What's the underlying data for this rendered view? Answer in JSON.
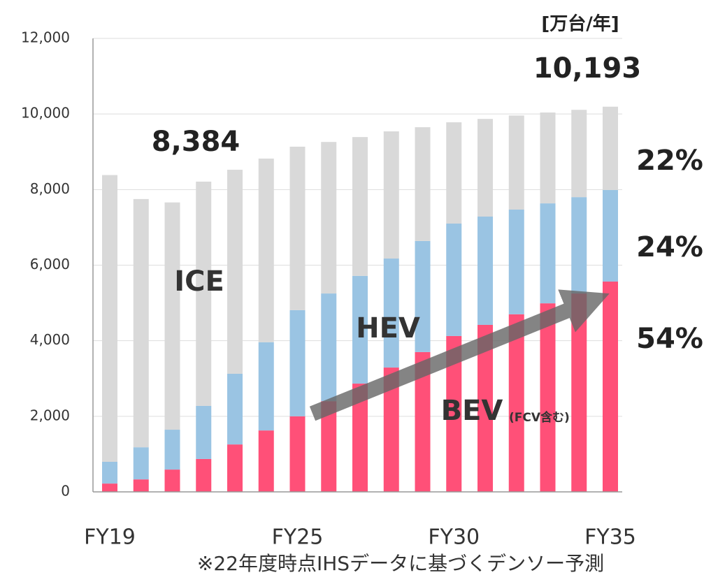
{
  "chart_data": {
    "type": "stacked_bar",
    "unit": "[万台/年]",
    "categories": [
      "FY19",
      null,
      null,
      null,
      null,
      null,
      "FY25",
      null,
      null,
      null,
      null,
      "FY30",
      null,
      null,
      null,
      null,
      "FY35"
    ],
    "series": [
      {
        "name": "BEV",
        "color": "#ff5078",
        "values": [
          220,
          330,
          590,
          870,
          1255,
          1625,
          2000,
          2400,
          2865,
          3290,
          3700,
          4125,
          4420,
          4700,
          4990,
          5250,
          5565
        ]
      },
      {
        "name": "HEV",
        "color": "#9ac4e3",
        "values": [
          575,
          850,
          1055,
          1405,
          1870,
          2335,
          2810,
          2850,
          2850,
          2885,
          2940,
          2975,
          2865,
          2770,
          2645,
          2550,
          2425
        ]
      },
      {
        "name": "ICE",
        "color": "#d9d9d9",
        "values": [
          7589,
          6570,
          6015,
          5935,
          5400,
          4860,
          4325,
          4010,
          3675,
          3365,
          3010,
          2680,
          2585,
          2490,
          2405,
          2310,
          2203
        ]
      }
    ],
    "ylim": [
      0,
      12000
    ],
    "yticks": [
      0,
      {
        "value": 2000,
        "label": "2,000"
      },
      {
        "value": 4000,
        "label": "4,000"
      },
      {
        "value": 6000,
        "label": "6,000"
      },
      {
        "value": 8000,
        "label": "8,000"
      },
      {
        "value": 10000,
        "label": "10,000"
      },
      {
        "value": 12000,
        "label": "12,000"
      }
    ],
    "grid": true,
    "annotations": {
      "first_total": "8,384",
      "last_total": "10,193",
      "ice_share": "22%",
      "hev_share": "24%",
      "bev_share": "54%",
      "bev_note": "(FCV含む)",
      "footnote": "※22年度時点IHSデータに基づくデンソー予測"
    }
  }
}
